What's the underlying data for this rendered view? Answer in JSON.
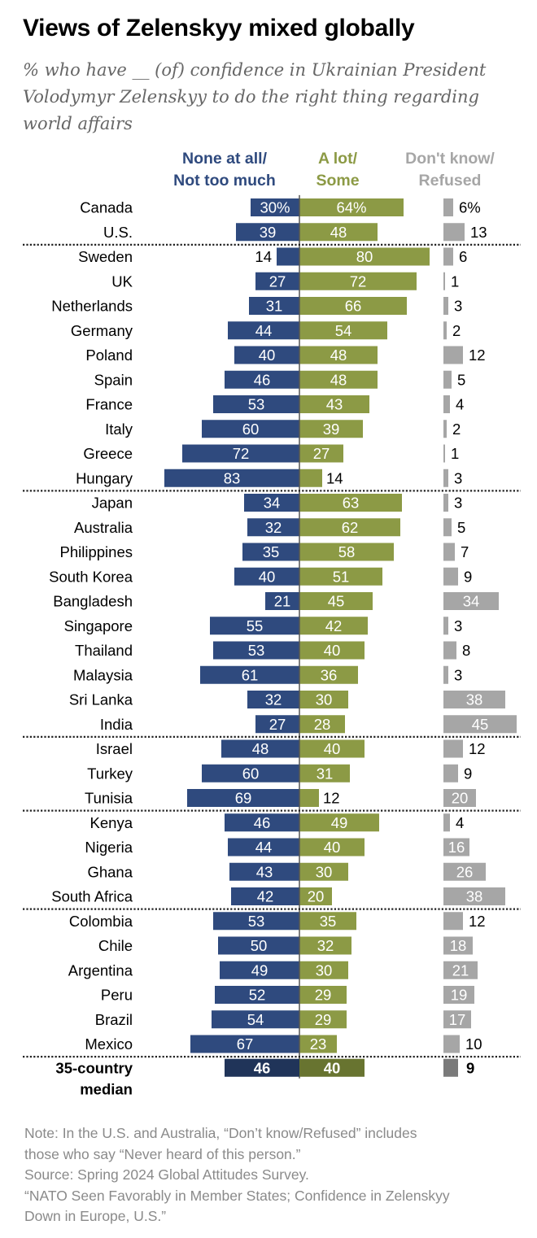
{
  "title": "Views of Zelenskyy mixed globally",
  "subtitle": "% who have __ (of) confidence in Ukrainian President Volodymyr Zelenskyy to do the right thing regarding world affairs",
  "notes": [
    "Note: In the U.S. and Australia, “Don’t know/Refused” includes",
    "those who say “Never heard of this person.”",
    "Source: Spring 2024 Global Attitudes Survey.",
    "“NATO Seen Favorably in Member States; Confidence in Zelenskyy",
    "Down in Europe, U.S.”"
  ],
  "colors": {
    "none": "#2f4a7e",
    "alot": "#8c9a45",
    "dk": "#a6a6a6",
    "none_median": "#203459",
    "alot_median": "#687430",
    "dk_median": "#7a7a7a"
  },
  "chart_data": {
    "type": "bar",
    "layout": "diverging",
    "series": [
      {
        "name": "None at all/ Not too much",
        "header": [
          "None at all/",
          "Not too much"
        ],
        "values": [
          30,
          39,
          14,
          27,
          31,
          44,
          40,
          46,
          53,
          60,
          72,
          83,
          34,
          32,
          35,
          40,
          21,
          55,
          53,
          61,
          32,
          27,
          48,
          60,
          69,
          46,
          44,
          43,
          42,
          53,
          50,
          49,
          52,
          54,
          67
        ]
      },
      {
        "name": "A lot/ Some",
        "header": [
          "A lot/",
          "Some"
        ],
        "values": [
          64,
          48,
          80,
          72,
          66,
          54,
          48,
          48,
          43,
          39,
          27,
          14,
          63,
          62,
          58,
          51,
          45,
          42,
          40,
          36,
          30,
          28,
          40,
          31,
          12,
          49,
          40,
          30,
          20,
          35,
          32,
          30,
          29,
          29,
          23
        ]
      },
      {
        "name": "Don't know/ Refused",
        "header": [
          "Don't know/",
          "Refused"
        ],
        "values": [
          6,
          13,
          6,
          1,
          3,
          2,
          12,
          5,
          4,
          2,
          1,
          3,
          3,
          5,
          7,
          9,
          34,
          3,
          8,
          3,
          38,
          45,
          12,
          9,
          20,
          4,
          16,
          26,
          38,
          12,
          18,
          21,
          19,
          17,
          10
        ]
      }
    ],
    "categories": [
      "Canada",
      "U.S.",
      "Sweden",
      "UK",
      "Netherlands",
      "Germany",
      "Poland",
      "Spain",
      "France",
      "Italy",
      "Greece",
      "Hungary",
      "Japan",
      "Australia",
      "Philippines",
      "South Korea",
      "Bangladesh",
      "Singapore",
      "Thailand",
      "Malaysia",
      "Sri Lanka",
      "India",
      "Israel",
      "Turkey",
      "Tunisia",
      "Kenya",
      "Nigeria",
      "Ghana",
      "South Africa",
      "Colombia",
      "Chile",
      "Argentina",
      "Peru",
      "Brazil",
      "Mexico"
    ],
    "first_row_labels": [
      "30%",
      "64%",
      "6%"
    ],
    "group_sizes": [
      2,
      10,
      10,
      3,
      4,
      6
    ],
    "median": {
      "label": [
        "35-country",
        "median"
      ],
      "values": [
        46,
        40,
        9
      ]
    }
  }
}
